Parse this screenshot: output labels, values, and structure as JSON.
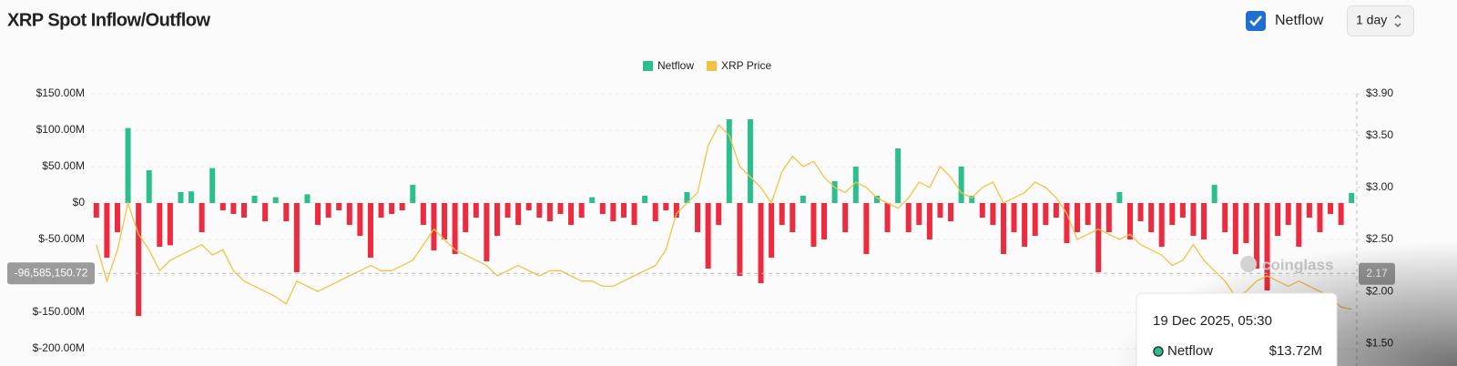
{
  "header": {
    "title": "XRP Spot Inflow/Outflow",
    "checkbox_label": "Netflow",
    "interval": "1 day"
  },
  "chart_data": {
    "type": "bar-line",
    "legend_position": "top",
    "grid": true,
    "ylim": [
      -200,
      150
    ],
    "yticks": [
      {
        "value": 150,
        "label": "$150.00M"
      },
      {
        "value": 100,
        "label": "$100.00M"
      },
      {
        "value": 50,
        "label": "$50.00M"
      },
      {
        "value": 0,
        "label": "$0"
      },
      {
        "value": -50,
        "label": "$-50.00M"
      },
      {
        "value": -100,
        "label": "$-100.00M"
      },
      {
        "value": -150,
        "label": "$-150.00M"
      },
      {
        "value": -200,
        "label": "$-200.00M"
      }
    ],
    "y2lim": [
      1.45,
      3.9
    ],
    "y2ticks": [
      {
        "value": 3.9,
        "label": "$3.90"
      },
      {
        "value": 3.5,
        "label": "$3.50"
      },
      {
        "value": 3,
        "label": "$3.00"
      },
      {
        "value": 2.5,
        "label": "$2.50"
      },
      {
        "value": 2,
        "label": "$2.00"
      },
      {
        "value": 1.5,
        "label": "$1.50"
      }
    ],
    "series": [
      {
        "name": "Netflow",
        "type": "bar",
        "color": "#2bbf8e",
        "negative_color": "#ee2a3e",
        "values": [
          -20,
          -75,
          -40,
          103,
          -155,
          45,
          -60,
          -58,
          15,
          16,
          -40,
          48,
          -10,
          -15,
          -20,
          10,
          -25,
          8,
          -25,
          -95,
          12,
          -30,
          -20,
          -10,
          -30,
          -45,
          -75,
          -20,
          -15,
          -10,
          25,
          -30,
          -65,
          -50,
          -70,
          -40,
          -20,
          -80,
          -45,
          -20,
          -30,
          -10,
          -20,
          -25,
          -15,
          -30,
          -20,
          8,
          -15,
          -25,
          -20,
          -30,
          10,
          -25,
          -10,
          -20,
          15,
          -40,
          -90,
          -30,
          115,
          -100,
          115,
          -110,
          -75,
          -30,
          -40,
          10,
          -60,
          -50,
          30,
          -40,
          50,
          -70,
          10,
          -40,
          75,
          -40,
          -30,
          -50,
          -20,
          -25,
          50,
          10,
          -20,
          -30,
          -70,
          -40,
          -60,
          -45,
          -30,
          -20,
          -55,
          -40,
          -30,
          -95,
          -40,
          15,
          -50,
          -25,
          -40,
          -60,
          -30,
          -20,
          -45,
          -50,
          25,
          -40,
          -70,
          -55,
          -90,
          -120,
          -45,
          -30,
          -60,
          -20,
          -40,
          -15,
          -30,
          13.72
        ]
      },
      {
        "name": "XRP Price",
        "type": "line",
        "axis": "y2",
        "color": "#f3c244",
        "values": [
          2.45,
          2.1,
          2.4,
          2.85,
          2.55,
          2.4,
          2.2,
          2.3,
          2.35,
          2.4,
          2.45,
          2.35,
          2.4,
          2.2,
          2.1,
          2.05,
          2.0,
          1.95,
          1.88,
          2.1,
          2.05,
          2.0,
          2.05,
          2.1,
          2.15,
          2.2,
          2.25,
          2.2,
          2.2,
          2.25,
          2.3,
          2.45,
          2.6,
          2.5,
          2.4,
          2.35,
          2.3,
          2.25,
          2.15,
          2.2,
          2.25,
          2.2,
          2.15,
          2.2,
          2.2,
          2.15,
          2.1,
          2.1,
          2.05,
          2.05,
          2.1,
          2.15,
          2.2,
          2.25,
          2.4,
          2.75,
          2.85,
          2.95,
          3.4,
          3.6,
          3.5,
          3.2,
          3.1,
          3.0,
          2.85,
          3.15,
          3.3,
          3.2,
          3.25,
          3.1,
          3.0,
          2.95,
          3.05,
          3.0,
          2.9,
          2.85,
          2.8,
          2.9,
          3.05,
          3.0,
          3.2,
          3.1,
          2.95,
          2.9,
          3.0,
          3.05,
          2.85,
          2.9,
          2.95,
          3.05,
          3.0,
          2.9,
          2.75,
          2.5,
          2.55,
          2.6,
          2.55,
          2.5,
          2.55,
          2.45,
          2.4,
          2.35,
          2.25,
          2.3,
          2.45,
          2.3,
          2.2,
          2.1,
          1.95,
          2.0,
          2.1,
          2.15,
          2.1,
          2.05,
          2.1,
          2.05,
          2.0,
          1.95,
          1.85,
          1.83
        ]
      }
    ],
    "crosshair": {
      "y": {
        "value": -96.58515072,
        "label": "-96,585,150.72"
      },
      "y2": 2.17
    },
    "watermark": "coinglass",
    "tooltip": {
      "date": "19 Dec 2025, 05:30",
      "series_name": "Netflow",
      "value_label": "$13.72M"
    }
  }
}
